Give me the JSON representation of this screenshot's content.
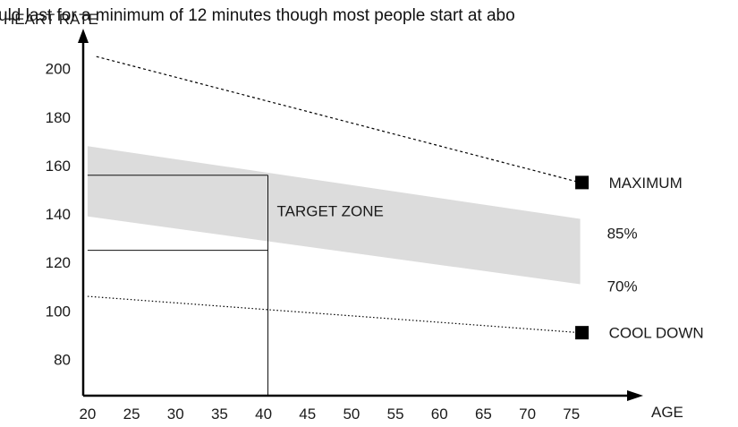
{
  "caption": {
    "text": "uld last for a minimum of 12 minutes though most people start at abo"
  },
  "chart_data": {
    "type": "line",
    "xlabel": "AGE",
    "ylabel": "HEART RATE",
    "x_ticks": [
      20,
      25,
      30,
      35,
      40,
      45,
      50,
      55,
      60,
      65,
      70,
      75
    ],
    "y_ticks": [
      80,
      100,
      120,
      140,
      160,
      180,
      200
    ],
    "xlim": [
      19.5,
      79.5
    ],
    "ylim": [
      65,
      218
    ],
    "grid": false,
    "series": [
      {
        "name": "MAXIMUM",
        "style": "dashed",
        "marker": "square",
        "x": [
          21,
          76
        ],
        "y": [
          205,
          153
        ]
      },
      {
        "name": "COOL DOWN",
        "style": "dotted",
        "marker": "square",
        "x": [
          20,
          76
        ],
        "y": [
          106,
          91
        ]
      }
    ],
    "band": {
      "upper_label": "85%",
      "lower_label": "70%",
      "x": [
        20,
        76
      ],
      "upper": [
        168,
        138
      ],
      "lower": [
        139,
        111
      ],
      "color": "#dcdcdc"
    },
    "target_zone": {
      "label": "TARGET ZONE",
      "x_start": 20,
      "x_end": 40.5,
      "y_top": 156,
      "y_bottom": 125
    },
    "colors": {
      "axis": "#000000",
      "line": "#000000",
      "band": "#dcdcdc"
    }
  }
}
